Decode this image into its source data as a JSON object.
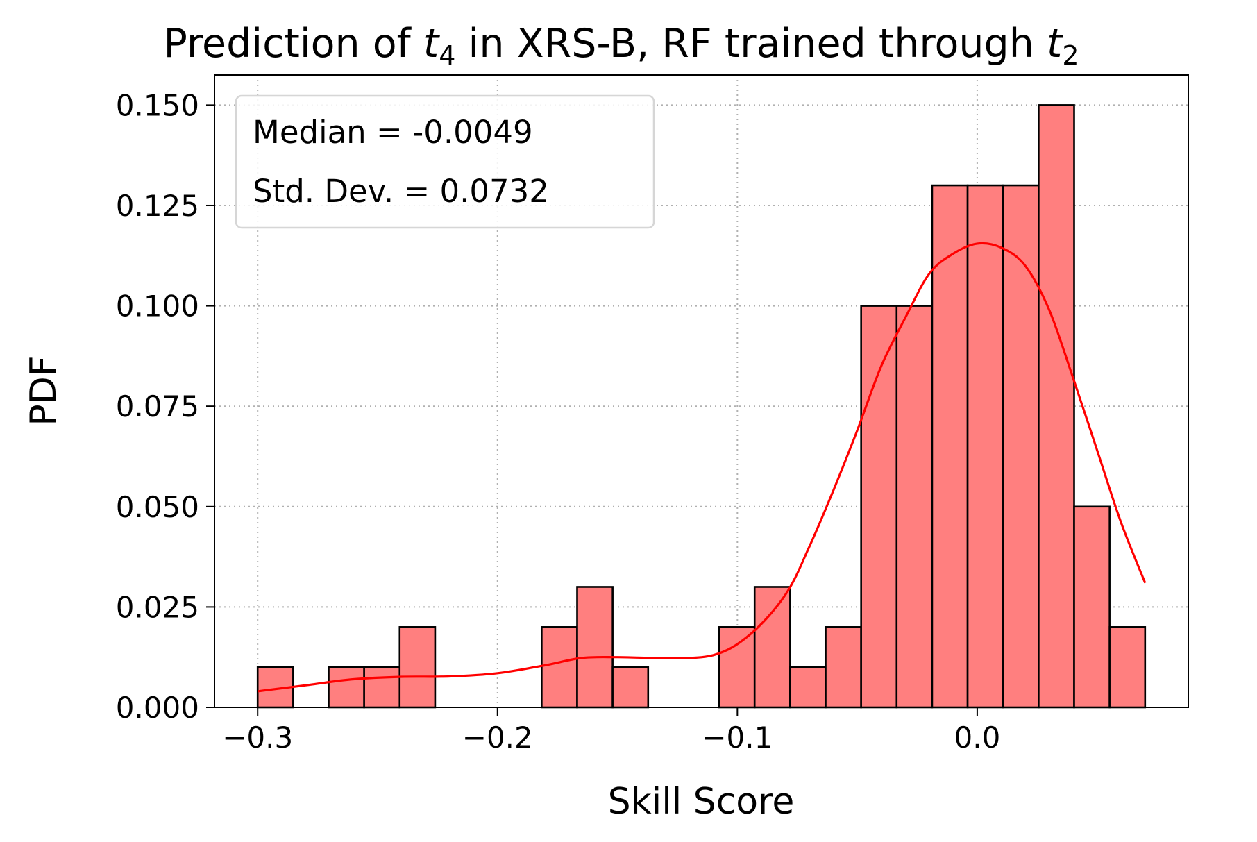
{
  "chart_data": {
    "type": "bar",
    "title": "Prediction of t4 in XRS-B, RF trained through t2",
    "title_parts": {
      "prefix": "Prediction of ",
      "var1": "t",
      "sub1": "4",
      "middle": " in XRS-B, RF trained through ",
      "var2": "t",
      "sub2": "2"
    },
    "xlabel": "Skill Score",
    "ylabel": "PDF",
    "xlim": [
      -0.318,
      0.088
    ],
    "ylim": [
      0.0,
      0.1575
    ],
    "x_ticks": [
      {
        "value": -0.3,
        "label": "−0.3"
      },
      {
        "value": -0.2,
        "label": "−0.2"
      },
      {
        "value": -0.1,
        "label": "−0.1"
      },
      {
        "value": 0.0,
        "label": "0.0"
      }
    ],
    "y_ticks": [
      {
        "value": 0.0,
        "label": "0.000"
      },
      {
        "value": 0.025,
        "label": "0.025"
      },
      {
        "value": 0.05,
        "label": "0.050"
      },
      {
        "value": 0.075,
        "label": "0.075"
      },
      {
        "value": 0.1,
        "label": "0.100"
      },
      {
        "value": 0.125,
        "label": "0.125"
      },
      {
        "value": 0.15,
        "label": "0.150"
      }
    ],
    "grid": true,
    "legend_placement": "top-left",
    "annotations": [
      "Median = -0.0049",
      "Std. Dev. = 0.0732"
    ],
    "bar_color": "#ff7f7f",
    "bar_edge_color": "#000000",
    "kde_color": "#ff0000",
    "bins": [
      {
        "x0": -0.3,
        "x1": -0.2852,
        "value": 0.01
      },
      {
        "x0": -0.2852,
        "x1": -0.2704,
        "value": 0.0
      },
      {
        "x0": -0.2704,
        "x1": -0.2556,
        "value": 0.01
      },
      {
        "x0": -0.2556,
        "x1": -0.2408,
        "value": 0.01
      },
      {
        "x0": -0.2408,
        "x1": -0.226,
        "value": 0.02
      },
      {
        "x0": -0.226,
        "x1": -0.2112,
        "value": 0.0
      },
      {
        "x0": -0.2112,
        "x1": -0.1964,
        "value": 0.0
      },
      {
        "x0": -0.1964,
        "x1": -0.1816,
        "value": 0.0
      },
      {
        "x0": -0.1816,
        "x1": -0.1668,
        "value": 0.02
      },
      {
        "x0": -0.1668,
        "x1": -0.152,
        "value": 0.03
      },
      {
        "x0": -0.152,
        "x1": -0.1372,
        "value": 0.01
      },
      {
        "x0": -0.1372,
        "x1": -0.1224,
        "value": 0.0
      },
      {
        "x0": -0.1224,
        "x1": -0.1076,
        "value": 0.0
      },
      {
        "x0": -0.1076,
        "x1": -0.0928,
        "value": 0.02
      },
      {
        "x0": -0.0928,
        "x1": -0.078,
        "value": 0.03
      },
      {
        "x0": -0.078,
        "x1": -0.0632,
        "value": 0.01
      },
      {
        "x0": -0.0632,
        "x1": -0.0484,
        "value": 0.02
      },
      {
        "x0": -0.0484,
        "x1": -0.0336,
        "value": 0.1
      },
      {
        "x0": -0.0336,
        "x1": -0.0188,
        "value": 0.1
      },
      {
        "x0": -0.0188,
        "x1": -0.004,
        "value": 0.13
      },
      {
        "x0": -0.004,
        "x1": 0.0108,
        "value": 0.13
      },
      {
        "x0": 0.0108,
        "x1": 0.0256,
        "value": 0.13
      },
      {
        "x0": 0.0256,
        "x1": 0.0404,
        "value": 0.15
      },
      {
        "x0": 0.0404,
        "x1": 0.0552,
        "value": 0.05
      },
      {
        "x0": 0.0552,
        "x1": 0.07,
        "value": 0.02
      }
    ],
    "kde_curve": {
      "x": [
        -0.3,
        -0.28,
        -0.26,
        -0.24,
        -0.22,
        -0.2,
        -0.18,
        -0.165,
        -0.15,
        -0.13,
        -0.11,
        -0.095,
        -0.08,
        -0.07,
        -0.06,
        -0.05,
        -0.04,
        -0.03,
        -0.02,
        -0.01,
        0.0,
        0.01,
        0.02,
        0.03,
        0.04,
        0.05,
        0.06,
        0.07
      ],
      "y": [
        0.004,
        0.0055,
        0.007,
        0.0076,
        0.0077,
        0.0085,
        0.0105,
        0.0123,
        0.0125,
        0.0123,
        0.013,
        0.018,
        0.028,
        0.04,
        0.054,
        0.069,
        0.085,
        0.097,
        0.108,
        0.113,
        0.1155,
        0.1145,
        0.11,
        0.099,
        0.082,
        0.064,
        0.046,
        0.031
      ]
    }
  }
}
